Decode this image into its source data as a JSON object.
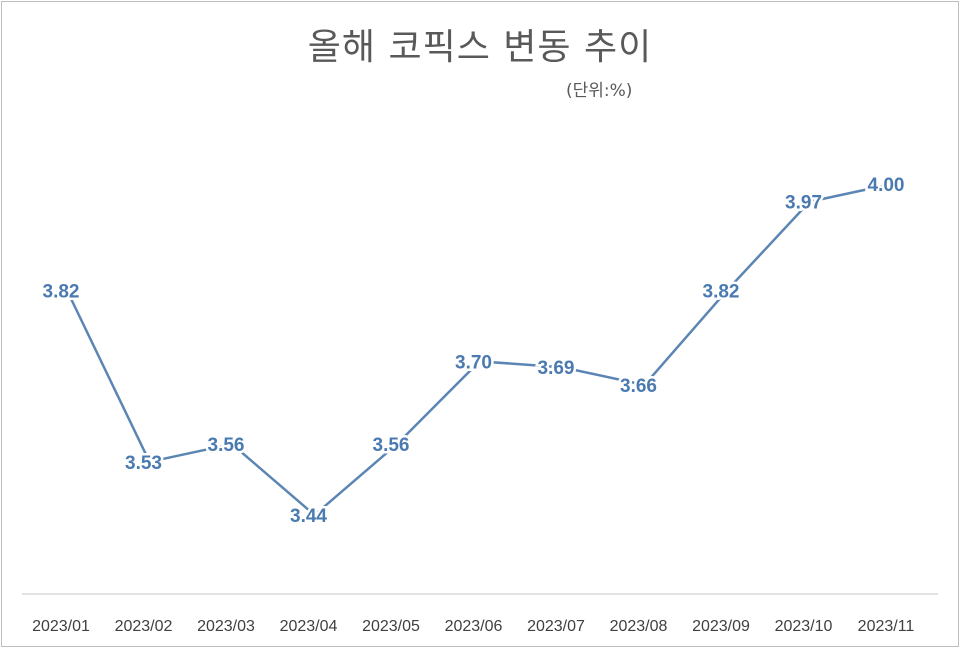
{
  "chart_data": {
    "type": "line",
    "title": "올해 코픽스 변동 추이",
    "subtitle": "(단위:%)",
    "categories": [
      "2023/01",
      "2023/02",
      "2023/03",
      "2023/04",
      "2023/05",
      "2023/06",
      "2023/07",
      "2023/08",
      "2023/09",
      "2023/10",
      "2023/11"
    ],
    "series": [
      {
        "values": [
          3.82,
          3.53,
          3.56,
          3.44,
          3.56,
          3.7,
          3.69,
          3.66,
          3.82,
          3.97,
          4.0
        ]
      }
    ],
    "data_labels": [
      "3.82",
      "3.53",
      "3.56",
      "3.44",
      "3.56",
      "3.70",
      "3.69",
      "3.66",
      "3.82",
      "3.97",
      "4.00"
    ],
    "ylim": [
      3.2,
      4.2
    ],
    "grid": false,
    "legend": "none",
    "colors": {
      "line": "#5b86b4",
      "label": "#4a7ab0",
      "axis": "#d9d9d9"
    }
  }
}
